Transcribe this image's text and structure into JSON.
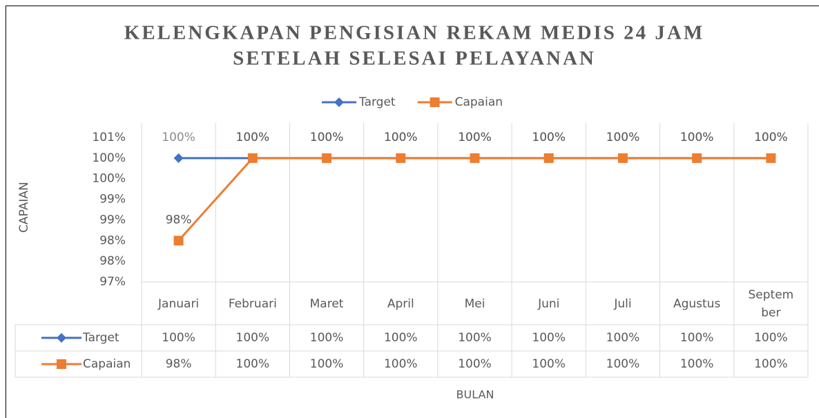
{
  "chart_data": {
    "type": "line",
    "title": [
      "KELENGKAPAN PENGISIAN REKAM MEDIS 24 JAM",
      "SETELAH SELESAI PELAYANAN"
    ],
    "x_label": "BULAN",
    "y_label": "CAPAIAN",
    "categories": [
      "Januari",
      "Februari",
      "Maret",
      "April",
      "Mei",
      "Juni",
      "Juli",
      "Agustus",
      "September"
    ],
    "series": [
      {
        "name": "Target",
        "color": "#4472c4",
        "marker": "diamond",
        "values": [
          100,
          100,
          100,
          100,
          100,
          100,
          100,
          100,
          100
        ],
        "value_labels": [
          "100%",
          "100%",
          "100%",
          "100%",
          "100%",
          "100%",
          "100%",
          "100%",
          "100%"
        ]
      },
      {
        "name": "Capaian",
        "color": "#ed7d31",
        "marker": "square",
        "values": [
          98,
          100,
          100,
          100,
          100,
          100,
          100,
          100,
          100
        ],
        "value_labels": [
          "98%",
          "100%",
          "100%",
          "100%",
          "100%",
          "100%",
          "100%",
          "100%",
          "100%"
        ]
      }
    ],
    "ylim": [
      97,
      100.5
    ],
    "yticks": [
      {
        "value": 97,
        "label": "97%"
      },
      {
        "value": 97.5,
        "label": "98%"
      },
      {
        "value": 98,
        "label": "98%"
      },
      {
        "value": 98.5,
        "label": "99%"
      },
      {
        "value": 99,
        "label": "99%"
      },
      {
        "value": 99.5,
        "label": "100%"
      },
      {
        "value": 100,
        "label": "100%"
      },
      {
        "value": 100.5,
        "label": "101%"
      }
    ],
    "legend": "top",
    "data_table": true
  }
}
